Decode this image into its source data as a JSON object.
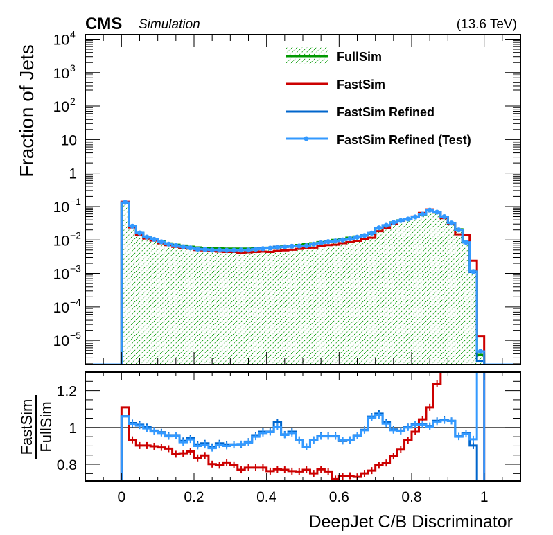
{
  "chart_data": [
    {
      "type": "line",
      "panel": "main",
      "title": "",
      "header_left_bold": "CMS",
      "header_left_italic": "Simulation",
      "header_right": "(13.6 TeV)",
      "xlabel": "",
      "ylabel": "Fraction of Jets",
      "yscale": "log",
      "xlim": [
        -0.1,
        1.1
      ],
      "ylim": [
        1.9e-06,
        13600
      ],
      "grid": false,
      "legend_position": "top-right",
      "y_ticks": [
        {
          "value": 10000.0,
          "base": "10",
          "exp": "4"
        },
        {
          "value": 1000.0,
          "base": "10",
          "exp": "3"
        },
        {
          "value": 100.0,
          "base": "10",
          "exp": "2"
        },
        {
          "value": 10,
          "base": "10",
          "exp": ""
        },
        {
          "value": 1,
          "base": "1",
          "exp": ""
        },
        {
          "value": 0.1,
          "base": "10",
          "exp": "−1"
        },
        {
          "value": 0.01,
          "base": "10",
          "exp": "−2"
        },
        {
          "value": 0.001,
          "base": "10",
          "exp": "−3"
        },
        {
          "value": 0.0001,
          "base": "10",
          "exp": "−4"
        },
        {
          "value": 1e-05,
          "base": "10",
          "exp": "−5"
        }
      ],
      "bin_edges_start": 0.0,
      "bin_width": 0.02,
      "series": [
        {
          "name": "FullSim",
          "color": "#009900",
          "style": "hatched-fill",
          "values": [
            0.125,
            0.0254,
            0.0161,
            0.0123,
            0.0107,
            0.009,
            0.0079,
            0.0072,
            0.0068,
            0.0063,
            0.006,
            0.0058,
            0.0057,
            0.0056,
            0.0055,
            0.0055,
            0.0055,
            0.0055,
            0.0056,
            0.0057,
            0.0059,
            0.0061,
            0.0064,
            0.0067,
            0.0071,
            0.0075,
            0.008,
            0.0086,
            0.0093,
            0.01,
            0.0108,
            0.0117,
            0.0127,
            0.0139,
            0.0152,
            0.0227,
            0.0269,
            0.0338,
            0.0387,
            0.0423,
            0.0481,
            0.058,
            0.0774,
            0.0656,
            0.048,
            0.0313,
            0.0208,
            0.0087,
            0.00122,
            3.7e-06
          ]
        },
        {
          "name": "FastSim",
          "color": "#cc0000",
          "style": "line",
          "values": [
            0.1387,
            0.0237,
            0.0145,
            0.0111,
            0.0096,
            0.008,
            0.007,
            0.0062,
            0.0058,
            0.0055,
            0.005,
            0.0049,
            0.0046,
            0.0045,
            0.0044,
            0.0044,
            0.0042,
            0.0043,
            0.0044,
            0.0045,
            0.0044,
            0.0047,
            0.0049,
            0.0051,
            0.0054,
            0.0058,
            0.0059,
            0.0066,
            0.007,
            0.0072,
            0.008,
            0.0086,
            0.0094,
            0.0104,
            0.0116,
            0.0183,
            0.0227,
            0.0297,
            0.036,
            0.0413,
            0.0502,
            0.0643,
            0.0819,
            0.066,
            0.045,
            0.031,
            0.0147,
            0.0143,
            0.0024,
            1.3e-05
          ]
        },
        {
          "name": "FastSim Refined",
          "color": "#0066cc",
          "style": "line",
          "values": [
            0.1326,
            0.026,
            0.0163,
            0.0123,
            0.0105,
            0.0088,
            0.0076,
            0.0069,
            0.0063,
            0.0059,
            0.0054,
            0.0053,
            0.0051,
            0.0051,
            0.005,
            0.005,
            0.005,
            0.0051,
            0.0054,
            0.0056,
            0.0058,
            0.0063,
            0.0062,
            0.0065,
            0.0066,
            0.0067,
            0.0075,
            0.0082,
            0.0089,
            0.0093,
            0.0101,
            0.0109,
            0.0122,
            0.0137,
            0.0161,
            0.0233,
            0.0277,
            0.0334,
            0.038,
            0.0424,
            0.049,
            0.059,
            0.078,
            0.068,
            0.05,
            0.0324,
            0.0198,
            0.0084,
            0.0011,
            2.4e-06
          ]
        },
        {
          "name": "FastSim Refined (Test)",
          "color": "#3399ff",
          "style": "line-with-markers",
          "values": [
            0.133,
            0.0259,
            0.0162,
            0.0122,
            0.0104,
            0.0088,
            0.0075,
            0.0068,
            0.0062,
            0.0058,
            0.0053,
            0.0052,
            0.005,
            0.005,
            0.0049,
            0.0049,
            0.005,
            0.005,
            0.0053,
            0.0055,
            0.0057,
            0.006,
            0.0062,
            0.0065,
            0.0066,
            0.0067,
            0.0075,
            0.0082,
            0.0089,
            0.0093,
            0.01,
            0.0109,
            0.0121,
            0.0136,
            0.016,
            0.0231,
            0.0275,
            0.0334,
            0.038,
            0.0423,
            0.0489,
            0.0589,
            0.0779,
            0.0678,
            0.0498,
            0.0323,
            0.02,
            0.0085,
            0.00114,
            4.7e-06
          ]
        }
      ]
    },
    {
      "type": "line",
      "panel": "ratio",
      "xlabel": "DeepJet C/B Discriminator",
      "ylabel_numerator": "FastSim",
      "ylabel_denominator": "FullSim",
      "xlim": [
        -0.1,
        1.1
      ],
      "ylim": [
        0.71,
        1.3
      ],
      "reference_line": 1.0,
      "x_ticks": [
        {
          "value": 0,
          "label": "0"
        },
        {
          "value": 0.2,
          "label": "0.2"
        },
        {
          "value": 0.4,
          "label": "0.4"
        },
        {
          "value": 0.6,
          "label": "0.6"
        },
        {
          "value": 0.8,
          "label": "0.8"
        },
        {
          "value": 1,
          "label": "1"
        }
      ],
      "y_ticks": [
        {
          "value": 0.8,
          "label": "0.8"
        },
        {
          "value": 1.0,
          "label": "1"
        },
        {
          "value": 1.2,
          "label": "1.2"
        }
      ],
      "bin_edges_start": 0.0,
      "bin_width": 0.02,
      "series": [
        {
          "name": "FastSim",
          "color": "#cc0000",
          "values": [
            1.109,
            0.933,
            0.902,
            0.902,
            0.898,
            0.892,
            0.885,
            0.855,
            0.86,
            0.87,
            0.835,
            0.848,
            0.801,
            0.795,
            0.81,
            0.797,
            0.77,
            0.782,
            0.782,
            0.782,
            0.763,
            0.773,
            0.77,
            0.763,
            0.761,
            0.77,
            0.751,
            0.773,
            0.761,
            0.72,
            0.736,
            0.738,
            0.732,
            0.751,
            0.766,
            0.795,
            0.807,
            0.845,
            0.88,
            0.93,
            0.977,
            1.044,
            1.109,
            1.237,
            1.5,
            1.5,
            1.5,
            1.5,
            1.5,
            1.5
          ]
        },
        {
          "name": "FastSim Refined",
          "color": "#0066cc",
          "values": [
            1.061,
            1.024,
            1.015,
            1.002,
            0.983,
            0.974,
            0.958,
            0.958,
            0.927,
            0.943,
            0.908,
            0.914,
            0.895,
            0.914,
            0.908,
            0.908,
            0.908,
            0.923,
            0.958,
            0.977,
            0.977,
            1.028,
            0.962,
            0.977,
            0.933,
            0.896,
            0.933,
            0.955,
            0.955,
            0.955,
            0.927,
            0.933,
            0.958,
            0.987,
            1.059,
            1.075,
            1.028,
            0.989,
            0.983,
            1.002,
            1.018,
            1.018,
            1.008,
            1.036,
            1.042,
            1.036,
            0.952,
            0.969,
            0.902,
            0.65
          ]
        },
        {
          "name": "FastSim Refined (Test)",
          "color": "#3399ff",
          "values": [
            1.06,
            1.02,
            1.01,
            0.995,
            0.978,
            0.97,
            0.952,
            0.955,
            0.92,
            0.935,
            0.9,
            0.905,
            0.888,
            0.905,
            0.9,
            0.905,
            0.91,
            0.918,
            0.95,
            0.97,
            0.975,
            1.005,
            0.96,
            0.97,
            0.93,
            0.895,
            0.93,
            0.952,
            0.952,
            0.952,
            0.93,
            0.93,
            0.955,
            0.985,
            1.052,
            1.065,
            1.021,
            0.985,
            0.98,
            1.0,
            1.015,
            1.015,
            1.005,
            1.032,
            1.038,
            1.035,
            0.95,
            0.965,
            0.936,
            1.5
          ]
        }
      ]
    }
  ]
}
